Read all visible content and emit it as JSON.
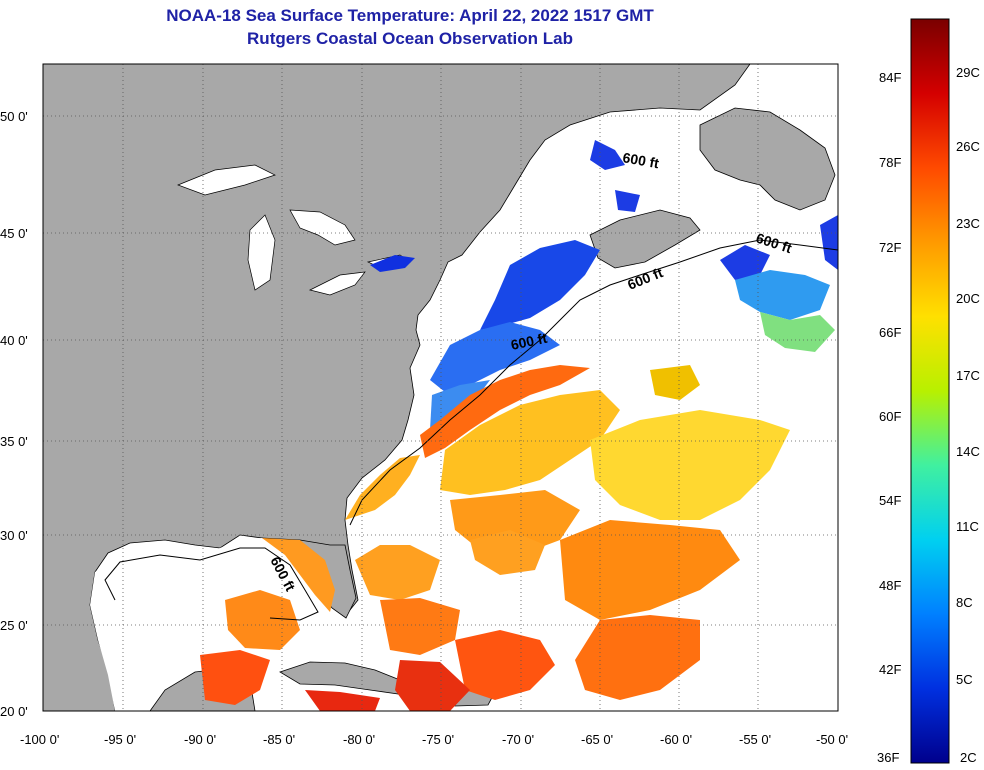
{
  "title": "NOAA-18 Sea Surface Temperature:  April 22, 2022 1517 GMT",
  "subtitle": "Rutgers Coastal Ocean Observation Lab",
  "map": {
    "lat_labels": [
      "50 0'",
      "45 0'",
      "40 0'",
      "35 0'",
      "30 0'",
      "25 0'",
      "20 0'"
    ],
    "lon_labels": [
      "-100 0'",
      "-95 0'",
      "-90 0'",
      "-85 0'",
      "-80 0'",
      "-75 0'",
      "-70 0'",
      "-65 0'",
      "-60 0'",
      "-55 0'",
      "-50 0'"
    ],
    "contour_label": "600 ft",
    "land_color": "#a8a8a8",
    "grid": "dotted"
  },
  "colorbar": {
    "fahrenheit_labels": [
      "84F",
      "78F",
      "72F",
      "66F",
      "60F",
      "54F",
      "48F",
      "42F",
      "36F"
    ],
    "celsius_labels": [
      "29C",
      "26C",
      "23C",
      "20C",
      "17C",
      "14C",
      "11C",
      "8C",
      "5C",
      "2C"
    ],
    "colors": [
      "#7a0000",
      "#d40000",
      "#ff4a00",
      "#ff9a00",
      "#ffe000",
      "#b8f000",
      "#40f0a0",
      "#00d0f0",
      "#0080ff",
      "#0030e0",
      "#00008c"
    ]
  }
}
